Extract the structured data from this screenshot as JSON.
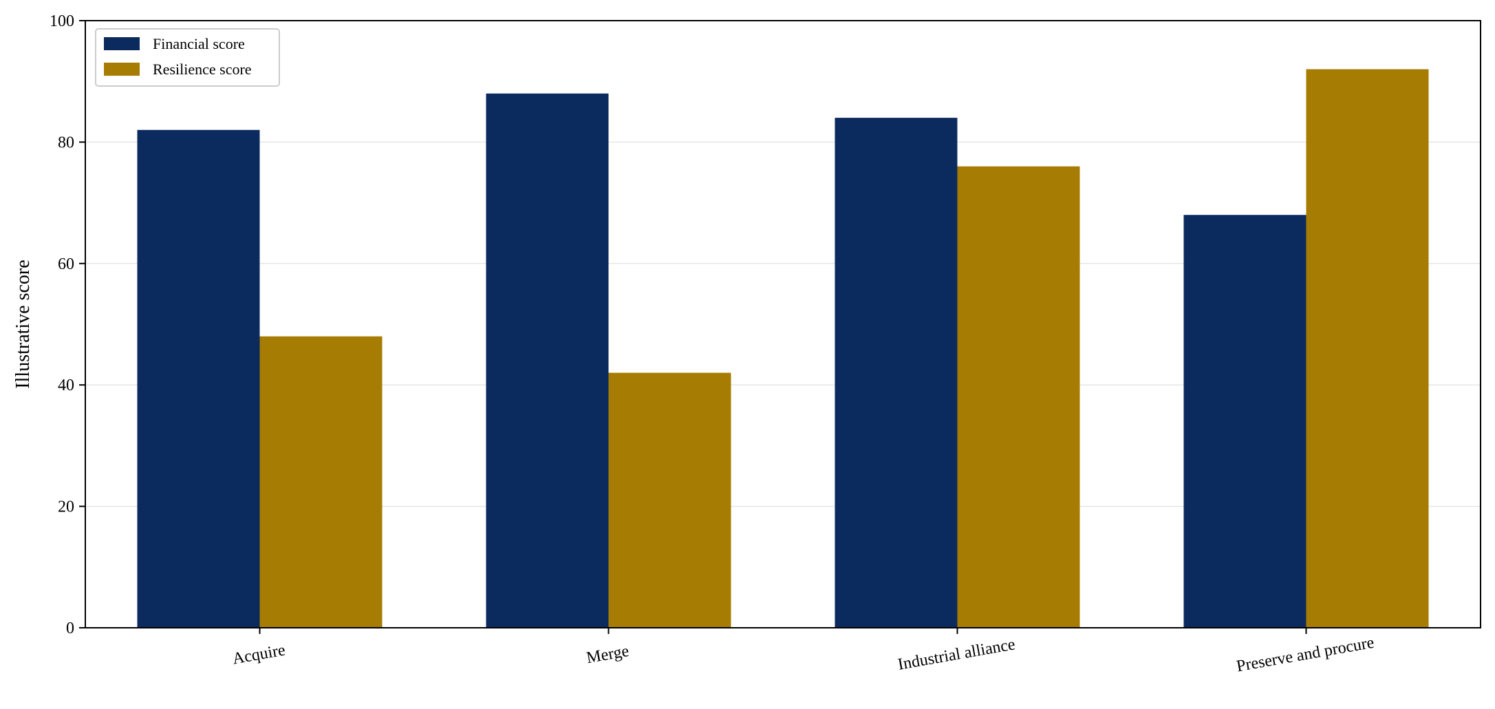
{
  "chart_data": {
    "type": "bar",
    "title": "",
    "xlabel": "",
    "ylabel": "Illustrative score",
    "categories": [
      "Acquire",
      "Merge",
      "Industrial alliance",
      "Preserve and procure"
    ],
    "series": [
      {
        "name": "Financial score",
        "color": "#0b2a5e",
        "values": [
          82,
          88,
          84,
          68
        ]
      },
      {
        "name": "Resilience score",
        "color": "#a67c02",
        "values": [
          48,
          42,
          76,
          92
        ]
      }
    ],
    "ylim": [
      0,
      100
    ],
    "yticks": [
      0,
      20,
      40,
      60,
      80,
      100
    ],
    "grid": "horizontal",
    "legend_position": "top-left"
  }
}
